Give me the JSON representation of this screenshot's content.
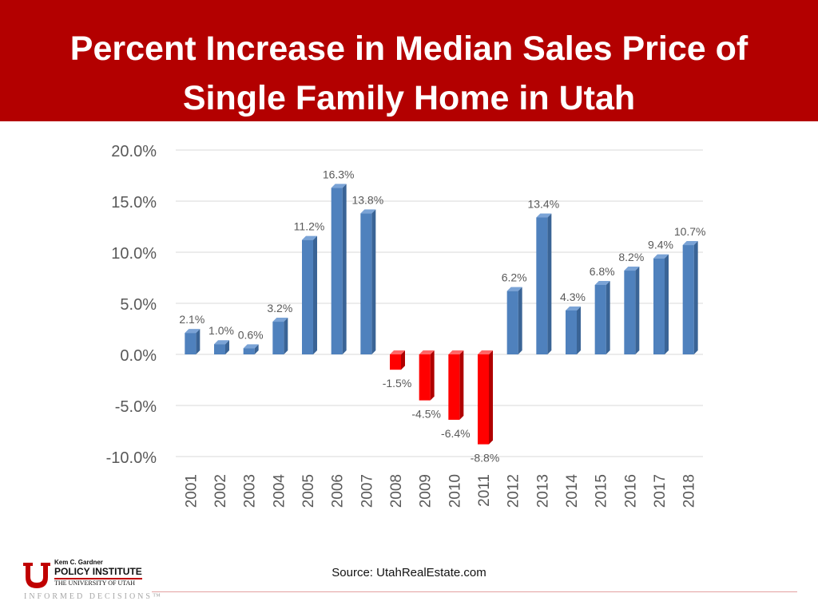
{
  "title": {
    "line1": "Percent Increase in Median Sales Price of",
    "line2": "Single Family Home in Utah"
  },
  "source": "Source: UtahRealEstate.com",
  "logo": {
    "small_text": "Kem C. Gardner",
    "main_text": "POLICY INSTITUTE",
    "sub_text": "THE UNIVERSITY OF UTAH",
    "tagline": "INFORMED DECISIONS™"
  },
  "colors": {
    "banner": "#b30000",
    "positive_bar": "#4f81bd",
    "negative_bar": "#ff0000",
    "gridline": "#d9d9d9",
    "axis_text": "#595959"
  },
  "chart_data": {
    "type": "bar",
    "title": "",
    "xlabel": "",
    "ylabel": "",
    "categories": [
      "2001",
      "2002",
      "2003",
      "2004",
      "2005",
      "2006",
      "2007",
      "2008",
      "2009",
      "2010",
      "2011",
      "2012",
      "2013",
      "2014",
      "2015",
      "2016",
      "2017",
      "2018"
    ],
    "values": [
      2.1,
      1.0,
      0.6,
      3.2,
      11.2,
      16.3,
      13.8,
      -1.5,
      -4.5,
      -6.4,
      -8.8,
      6.2,
      13.4,
      4.3,
      6.8,
      8.2,
      9.4,
      10.7
    ],
    "data_labels": [
      "2.1%",
      "1.0%",
      "0.6%",
      "3.2%",
      "11.2%",
      "16.3%",
      "13.8%",
      "-1.5%",
      "-4.5%",
      "-6.4%",
      "-8.8%",
      "6.2%",
      "13.4%",
      "4.3%",
      "6.8%",
      "8.2%",
      "9.4%",
      "10.7%"
    ],
    "ylim": [
      -10,
      20
    ],
    "yticks": [
      20,
      15,
      10,
      5,
      0,
      -5,
      -10
    ],
    "ytick_labels": [
      "20.0%",
      "15.0%",
      "10.0%",
      "5.0%",
      "0.0%",
      "-5.0%",
      "-10.0%"
    ],
    "grid": true,
    "legend": "none"
  }
}
